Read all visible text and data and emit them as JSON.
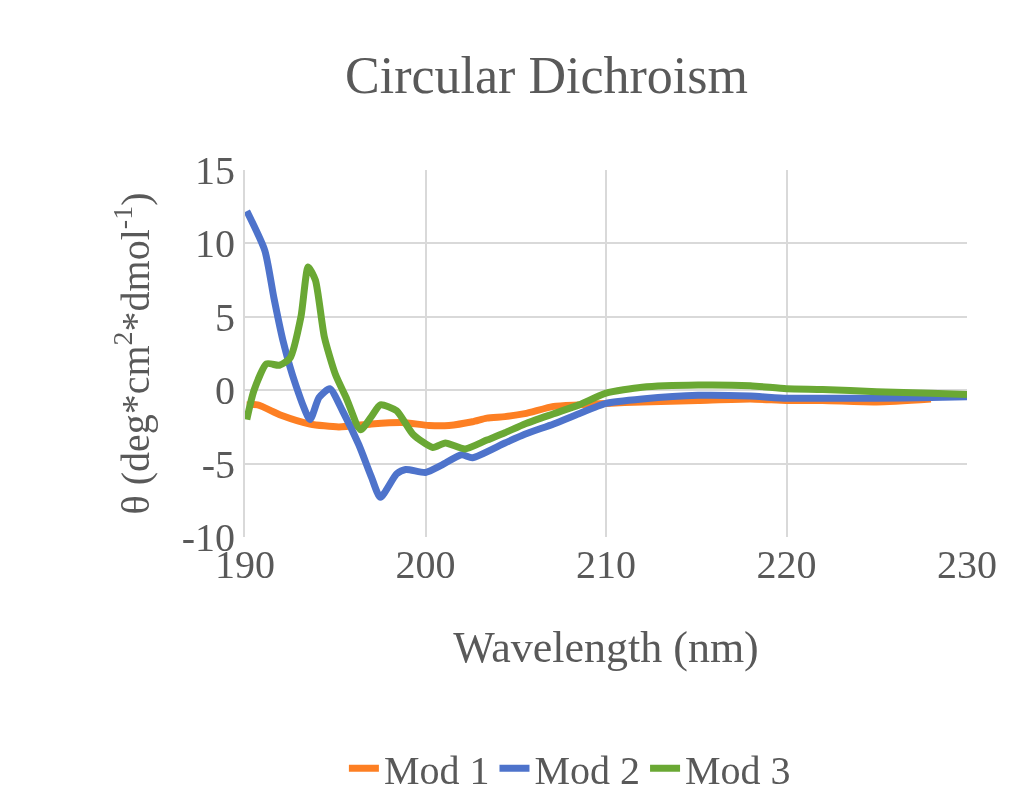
{
  "chart_data": {
    "type": "line",
    "title": "Circular Dichroism",
    "xlabel": "Wavelength (nm)",
    "ylabel": "θ (deg*cm$^{2}$*dmol$^{-1}$)",
    "xlim": [
      190,
      230
    ],
    "xticks": [
      190,
      200,
      210,
      220,
      230
    ],
    "ylim": [
      -10,
      15
    ],
    "yticks": [
      -10,
      -5,
      0,
      5,
      10,
      15
    ],
    "grid": true,
    "legend": "bottom",
    "marker": "none",
    "line_style": "solid",
    "series": [
      {
        "name": "Mod 1",
        "color": "#fd7f23",
        "x": [
          190.1,
          190.7,
          192,
          193.6,
          195.2,
          197,
          198.7,
          200.2,
          201.3,
          202.6,
          203.4,
          204.4,
          205.5,
          207.1,
          208.5,
          210,
          212,
          215.1,
          218,
          220,
          222,
          225,
          228
        ],
        "values": [
          -1.0,
          -1.0,
          -1.7,
          -2.3,
          -2.5,
          -2.3,
          -2.2,
          -2.4,
          -2.4,
          -2.15,
          -1.9,
          -1.8,
          -1.6,
          -1.1,
          -1.0,
          -0.9,
          -0.8,
          -0.7,
          -0.6,
          -0.7,
          -0.7,
          -0.8,
          -0.6
        ]
      },
      {
        "name": "Mod 2",
        "color": "#4e73cb",
        "x": [
          190.1,
          191.1,
          191.6,
          192.1,
          192.8,
          193.6,
          194.1,
          194.7,
          195.4,
          196.3,
          197,
          197.5,
          198.4,
          198.9,
          200,
          200.9,
          202,
          202.6,
          204.4,
          205.5,
          207.1,
          208.5,
          210,
          212,
          215.1,
          218,
          220,
          222,
          225,
          228,
          230
        ],
        "values": [
          12.2,
          9.5,
          6.3,
          3.4,
          0.4,
          -2.0,
          -0.5,
          0.1,
          -1.4,
          -3.7,
          -5.9,
          -7.3,
          -5.7,
          -5.4,
          -5.6,
          -5.1,
          -4.4,
          -4.6,
          -3.6,
          -3.0,
          -2.3,
          -1.6,
          -0.9,
          -0.6,
          -0.35,
          -0.4,
          -0.55,
          -0.55,
          -0.55,
          -0.5,
          -0.45
        ]
      },
      {
        "name": "Mod 3",
        "color": "#6aa834",
        "x": [
          190.1,
          190.5,
          191.2,
          191.9,
          192.5,
          193.1,
          193.5,
          193.9,
          194.4,
          195,
          195.6,
          196.4,
          197,
          197.5,
          198.4,
          199.3,
          200.4,
          201.1,
          202.2,
          203.4,
          204.4,
          205.5,
          207.1,
          208.5,
          210,
          212,
          215.1,
          218,
          220,
          222,
          225,
          228,
          230
        ],
        "values": [
          -2.0,
          0,
          1.8,
          1.7,
          2.2,
          5.0,
          8.4,
          7.5,
          3.6,
          1.1,
          -0.5,
          -2.7,
          -1.8,
          -1.0,
          -1.4,
          -3.0,
          -3.9,
          -3.6,
          -4.0,
          -3.4,
          -2.9,
          -2.3,
          -1.6,
          -1.0,
          -0.2,
          0.2,
          0.35,
          0.3,
          0.1,
          0.05,
          -0.1,
          -0.2,
          -0.3
        ]
      }
    ]
  }
}
